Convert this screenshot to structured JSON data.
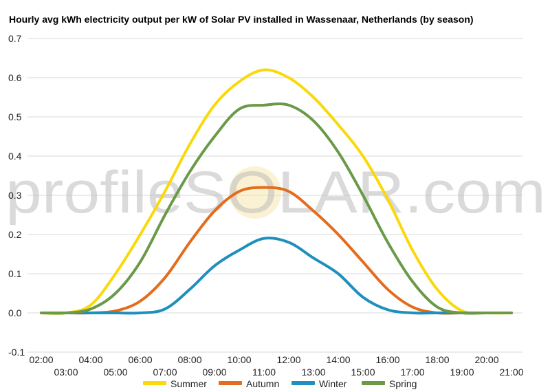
{
  "chart_data": {
    "type": "line",
    "title": "Hourly avg kWh electricity output per kW of Solar PV installed in Wassenaar, Netherlands (by season)",
    "watermark": "profileSOLAR.com",
    "xlabel": "",
    "ylabel": "",
    "ylim": [
      -0.1,
      0.7
    ],
    "yticks": [
      "0.7",
      "0.6",
      "0.5",
      "0.4",
      "0.3",
      "0.2",
      "0.1",
      "0.0",
      "-0.1"
    ],
    "xticks_top": [
      "02:00",
      "04:00",
      "06:00",
      "08:00",
      "10:00",
      "12:00",
      "14:00",
      "16:00",
      "18:00",
      "20:00"
    ],
    "xticks_bottom": [
      "03:00",
      "05:00",
      "07:00",
      "09:00",
      "11:00",
      "13:00",
      "15:00",
      "17:00",
      "19:00",
      "21:00"
    ],
    "x": [
      "02:00",
      "03:00",
      "04:00",
      "05:00",
      "06:00",
      "07:00",
      "08:00",
      "09:00",
      "10:00",
      "11:00",
      "12:00",
      "13:00",
      "14:00",
      "15:00",
      "16:00",
      "17:00",
      "18:00",
      "19:00",
      "20:00",
      "21:00"
    ],
    "grid": true,
    "legend_position": "bottom",
    "series": [
      {
        "name": "Summer",
        "color": "#f9d90a",
        "values": [
          0,
          0,
          0.02,
          0.1,
          0.2,
          0.31,
          0.43,
          0.53,
          0.59,
          0.62,
          0.6,
          0.55,
          0.48,
          0.4,
          0.29,
          0.16,
          0.06,
          0.005,
          0,
          0
        ]
      },
      {
        "name": "Autumn",
        "color": "#e36c1d",
        "values": [
          0,
          0,
          0,
          0.005,
          0.03,
          0.09,
          0.18,
          0.26,
          0.31,
          0.32,
          0.31,
          0.26,
          0.2,
          0.13,
          0.06,
          0.015,
          0,
          0,
          0,
          0
        ]
      },
      {
        "name": "Winter",
        "color": "#1f8fbe",
        "values": [
          0,
          0,
          0,
          0,
          0,
          0.01,
          0.06,
          0.12,
          0.16,
          0.19,
          0.18,
          0.14,
          0.1,
          0.04,
          0.008,
          0,
          0,
          0,
          0,
          0
        ]
      },
      {
        "name": "Spring",
        "color": "#6a9a48",
        "values": [
          0,
          0,
          0.01,
          0.05,
          0.13,
          0.25,
          0.36,
          0.45,
          0.52,
          0.53,
          0.53,
          0.49,
          0.41,
          0.3,
          0.18,
          0.08,
          0.015,
          0,
          0,
          0
        ]
      }
    ]
  }
}
